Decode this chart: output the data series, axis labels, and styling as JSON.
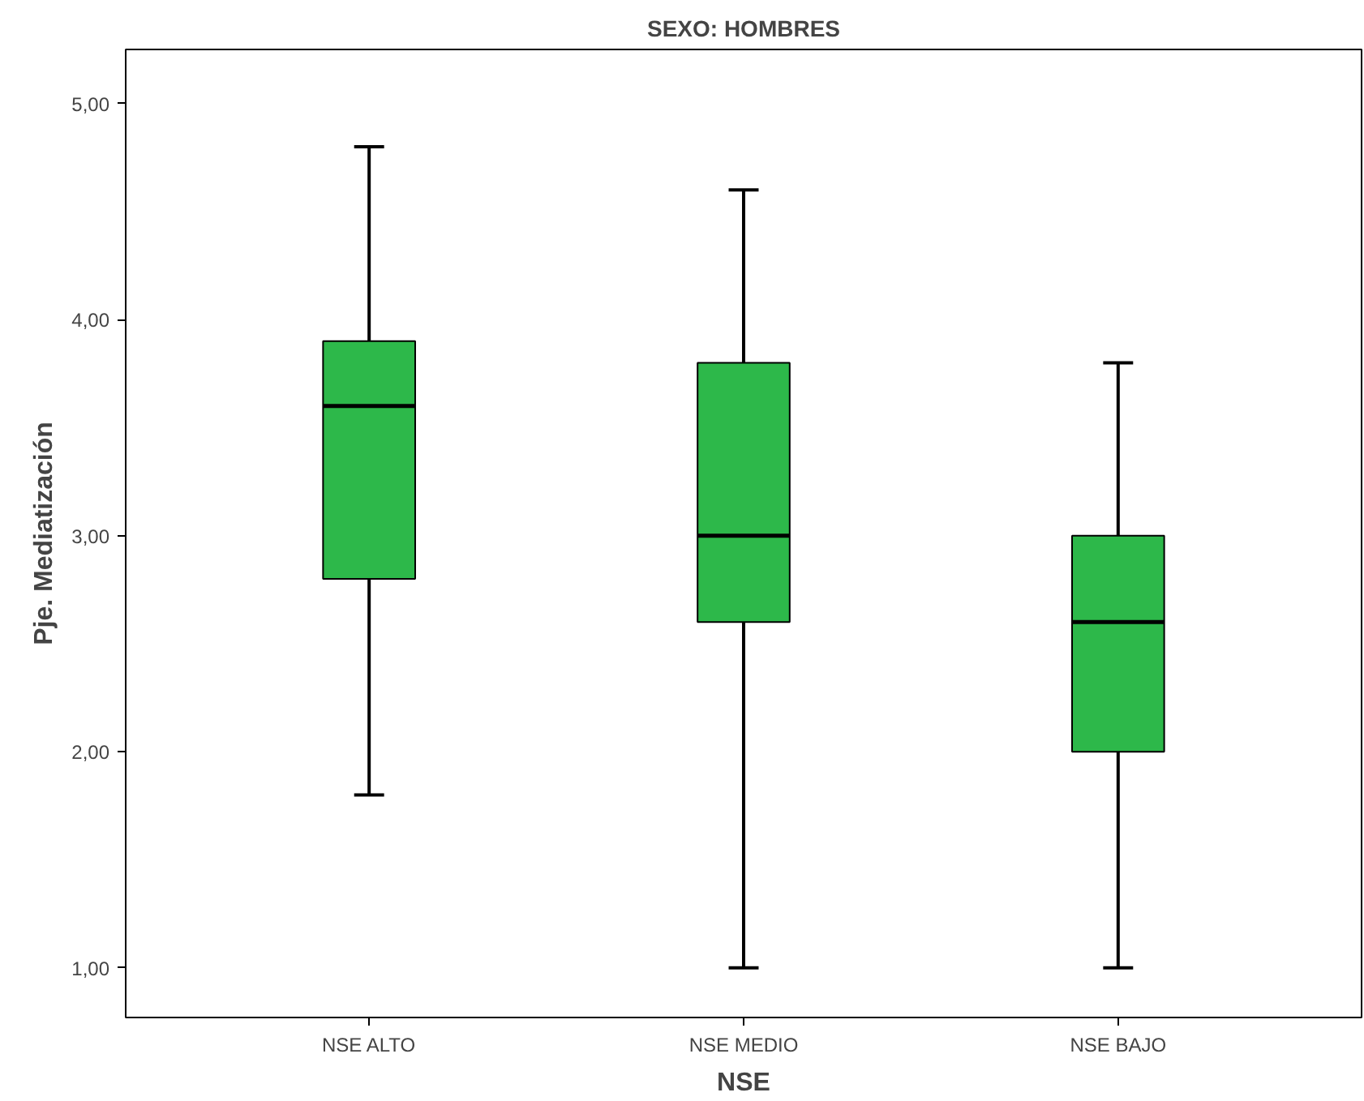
{
  "chart_data": {
    "type": "box",
    "title": "SEXO: HOMBRES",
    "xlabel": "NSE",
    "ylabel": "Pje. Mediatización",
    "categories": [
      "NSE ALTO",
      "NSE MEDIO",
      "NSE BAJO"
    ],
    "boxes": [
      {
        "low": 1.8,
        "q1": 2.8,
        "median": 3.6,
        "q3": 3.9,
        "high": 4.8
      },
      {
        "low": 1.0,
        "q1": 2.6,
        "median": 3.0,
        "q3": 3.8,
        "high": 4.6
      },
      {
        "low": 1.0,
        "q1": 2.0,
        "median": 2.6,
        "q3": 3.0,
        "high": 3.8
      }
    ],
    "color": "#2db84a",
    "ylim": [
      0.77,
      5.25
    ],
    "yticks": [
      {
        "value": 1,
        "label": "1,00"
      },
      {
        "value": 2,
        "label": "2,00"
      },
      {
        "value": 3,
        "label": "3,00"
      },
      {
        "value": 4,
        "label": "4,00"
      },
      {
        "value": 5,
        "label": "5,00"
      }
    ],
    "grid": false
  }
}
